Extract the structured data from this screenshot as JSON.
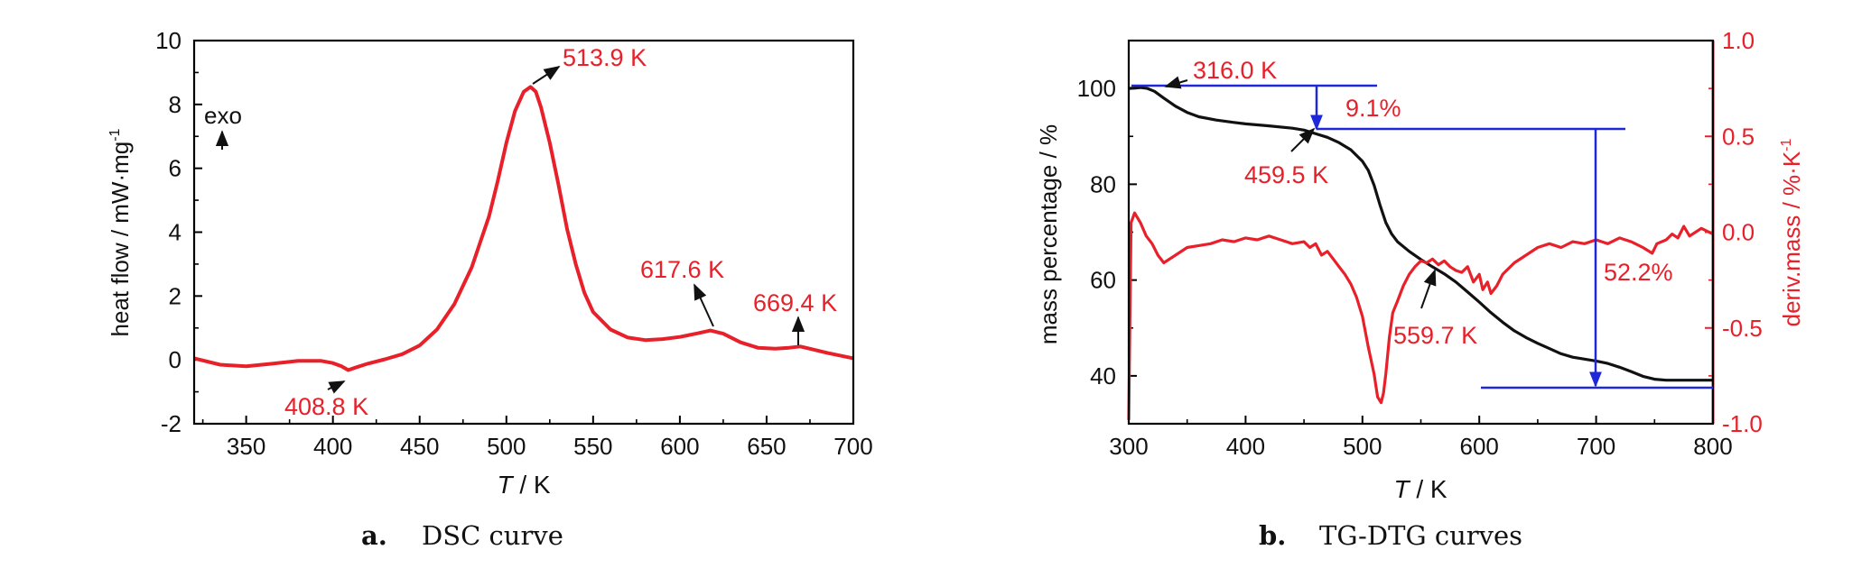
{
  "chart_data": [
    {
      "type": "line",
      "panel_label": "a.",
      "caption": "DSC curve",
      "title": "",
      "xlabel_italic": "T",
      "xlabel_rest": " / K",
      "ylabel": "heat flow / mW·mg",
      "ylabel_sup": "-1",
      "xlim": [
        320,
        700
      ],
      "ylim": [
        -2,
        10
      ],
      "xticks": [
        "350",
        "400",
        "450",
        "500",
        "550",
        "600",
        "650",
        "700"
      ],
      "yticks": [
        "-2",
        "0",
        "2",
        "4",
        "6",
        "8",
        "10"
      ],
      "grid": false,
      "exo_label": "exo",
      "series": [
        {
          "color": "#e8202a",
          "x": [
            320,
            335,
            350,
            365,
            380,
            393,
            400,
            405,
            408.8,
            413,
            420,
            430,
            440,
            450,
            460,
            470,
            480,
            490,
            495,
            500,
            505,
            510,
            513.9,
            517,
            520,
            525,
            530,
            535,
            540,
            545,
            550,
            560,
            570,
            580,
            590,
            600,
            610,
            617.6,
            625,
            635,
            645,
            655,
            663,
            669.4,
            675,
            685,
            700
          ],
          "y": [
            0.05,
            -0.15,
            -0.2,
            -0.12,
            -0.03,
            -0.03,
            -0.1,
            -0.2,
            -0.32,
            -0.24,
            -0.12,
            0.02,
            0.18,
            0.45,
            0.95,
            1.75,
            2.9,
            4.5,
            5.6,
            6.8,
            7.8,
            8.4,
            8.55,
            8.4,
            7.9,
            6.8,
            5.5,
            4.1,
            3.0,
            2.1,
            1.5,
            0.95,
            0.7,
            0.62,
            0.65,
            0.72,
            0.83,
            0.92,
            0.82,
            0.55,
            0.38,
            0.35,
            0.38,
            0.42,
            0.35,
            0.22,
            0.05
          ]
        }
      ],
      "annotations": [
        {
          "text": "513.9 K",
          "x": 513.9,
          "y": 8.55
        },
        {
          "text": "408.8 K",
          "x": 408.8,
          "y": -0.32
        },
        {
          "text": "617.6 K",
          "x": 617.6,
          "y": 0.92
        },
        {
          "text": "669.4 K",
          "x": 669.4,
          "y": 0.42
        }
      ]
    },
    {
      "type": "line",
      "panel_label": "b.",
      "caption": "TG-DTG curves",
      "title": "",
      "xlabel_italic": "T",
      "xlabel_rest": " / K",
      "ylabel_left": "mass percentage / %",
      "ylabel_right": "deriv.mass / %·K",
      "ylabel_right_sup": "-1",
      "xlim": [
        300,
        800
      ],
      "ylim_left": [
        30,
        110
      ],
      "ylim_right": [
        -1.0,
        1.0
      ],
      "xticks": [
        "300",
        "400",
        "500",
        "600",
        "700",
        "800"
      ],
      "yticks_left": [
        "40",
        "60",
        "80",
        "100"
      ],
      "yticks_right": [
        "-1.0",
        "-0.5",
        "0.0",
        "0.5",
        "1.0"
      ],
      "grid": false,
      "series": [
        {
          "axis": "left",
          "color": "#111111",
          "x": [
            300,
            305,
            310,
            316,
            322,
            330,
            340,
            350,
            360,
            375,
            390,
            400,
            420,
            440,
            450,
            459.5,
            470,
            480,
            490,
            500,
            505,
            510,
            515,
            520,
            525,
            530,
            540,
            550,
            559.7,
            570,
            580,
            590,
            600,
            610,
            620,
            630,
            640,
            650,
            660,
            670,
            680,
            690,
            700,
            710,
            720,
            730,
            740,
            750,
            760,
            780,
            800
          ],
          "y": [
            100.0,
            100.1,
            100.2,
            100.0,
            99.4,
            98.0,
            96.3,
            95.0,
            94.1,
            93.4,
            92.9,
            92.6,
            92.2,
            91.7,
            91.3,
            90.6,
            89.8,
            88.7,
            87.2,
            84.8,
            82.9,
            79.8,
            75.7,
            72.0,
            69.6,
            68.0,
            66.0,
            64.3,
            62.8,
            61.3,
            59.6,
            57.5,
            55.4,
            53.2,
            51.2,
            49.4,
            48.0,
            46.8,
            45.7,
            44.6,
            43.9,
            43.5,
            43.1,
            42.6,
            41.8,
            40.9,
            39.9,
            39.3,
            39.1,
            39.1,
            39.1
          ]
        },
        {
          "axis": "right",
          "color": "#e8202a",
          "x": [
            300,
            302,
            305,
            310,
            315,
            320,
            325,
            330,
            340,
            350,
            360,
            370,
            380,
            390,
            400,
            410,
            420,
            430,
            440,
            450,
            455,
            460,
            465,
            470,
            475,
            480,
            485,
            490,
            495,
            500,
            505,
            510,
            513,
            516,
            518,
            520,
            523,
            526,
            530,
            535,
            540,
            545,
            550,
            555,
            560,
            565,
            570,
            575,
            580,
            585,
            590,
            595,
            600,
            603,
            607,
            610,
            615,
            620,
            630,
            640,
            650,
            660,
            670,
            680,
            690,
            700,
            710,
            720,
            730,
            740,
            748,
            752,
            760,
            765,
            770,
            775,
            780,
            790,
            800
          ],
          "y": [
            -0.98,
            0.05,
            0.1,
            0.05,
            -0.02,
            -0.06,
            -0.12,
            -0.16,
            -0.12,
            -0.08,
            -0.07,
            -0.06,
            -0.04,
            -0.05,
            -0.03,
            -0.04,
            -0.02,
            -0.04,
            -0.06,
            -0.05,
            -0.08,
            -0.06,
            -0.12,
            -0.1,
            -0.14,
            -0.18,
            -0.22,
            -0.27,
            -0.34,
            -0.44,
            -0.6,
            -0.74,
            -0.86,
            -0.89,
            -0.84,
            -0.74,
            -0.55,
            -0.42,
            -0.36,
            -0.28,
            -0.22,
            -0.18,
            -0.15,
            -0.16,
            -0.14,
            -0.17,
            -0.15,
            -0.18,
            -0.2,
            -0.21,
            -0.18,
            -0.26,
            -0.22,
            -0.3,
            -0.26,
            -0.32,
            -0.28,
            -0.22,
            -0.16,
            -0.12,
            -0.08,
            -0.06,
            -0.08,
            -0.05,
            -0.06,
            -0.04,
            -0.06,
            -0.03,
            -0.05,
            -0.08,
            -0.11,
            -0.06,
            -0.04,
            -0.01,
            -0.03,
            0.03,
            -0.02,
            0.02,
            -0.01
          ]
        }
      ],
      "annotations": [
        {
          "text": "316.0 K",
          "x": 316.0,
          "y": 100.0
        },
        {
          "text": "459.5 K",
          "x": 459.5,
          "y": 90.6
        },
        {
          "text": "559.7 K",
          "x": 559.7,
          "y": 62.8
        },
        {
          "text": "9.1%"
        },
        {
          "text": "52.2%"
        }
      ],
      "steps": [
        {
          "label": "9.1%",
          "from": 100.0,
          "to": 90.9,
          "at_x": 460
        },
        {
          "label": "52.2%",
          "from": 90.9,
          "to": 38.7,
          "at_x": 700
        }
      ],
      "step_color": "#1f28d8"
    }
  ]
}
